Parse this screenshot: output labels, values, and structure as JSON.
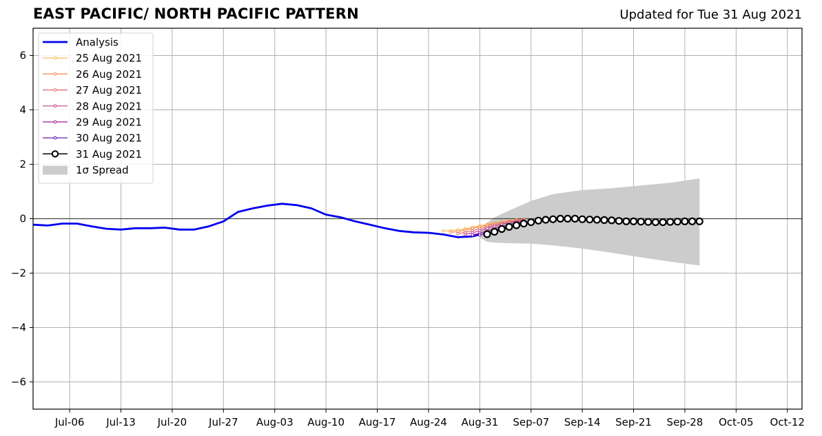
{
  "chart_data": {
    "type": "line",
    "title": "EAST PACIFIC/ NORTH PACIFIC PATTERN",
    "subtitle": "Updated for Tue 31 Aug 2021",
    "ylim": [
      -7,
      7
    ],
    "yticks": [
      -6,
      -4,
      -2,
      0,
      2,
      4,
      6
    ],
    "ytick_labels": [
      "−6",
      "−4",
      "−2",
      "0",
      "2",
      "4",
      "6"
    ],
    "xlim": [
      "2021-07-01",
      "2021-10-14"
    ],
    "xticks": [
      "2021-07-06",
      "2021-07-13",
      "2021-07-20",
      "2021-07-27",
      "2021-08-03",
      "2021-08-10",
      "2021-08-17",
      "2021-08-24",
      "2021-08-31",
      "2021-09-07",
      "2021-09-14",
      "2021-09-21",
      "2021-09-28",
      "2021-10-05",
      "2021-10-12"
    ],
    "xtick_labels": [
      "Jul-06",
      "Jul-13",
      "Jul-20",
      "Jul-27",
      "Aug-03",
      "Aug-10",
      "Aug-17",
      "Aug-24",
      "Aug-31",
      "Sep-07",
      "Sep-14",
      "Sep-21",
      "Sep-28",
      "Oct-05",
      "Oct-12"
    ],
    "grid": true,
    "legend_position": "top-left",
    "analysis": {
      "name": "Analysis",
      "color": "#0000ee",
      "x": [
        "2021-07-01",
        "2021-07-03",
        "2021-07-05",
        "2021-07-07",
        "2021-07-09",
        "2021-07-11",
        "2021-07-13",
        "2021-07-15",
        "2021-07-17",
        "2021-07-19",
        "2021-07-21",
        "2021-07-23",
        "2021-07-25",
        "2021-07-27",
        "2021-07-29",
        "2021-07-31",
        "2021-08-02",
        "2021-08-04",
        "2021-08-06",
        "2021-08-08",
        "2021-08-10",
        "2021-08-12",
        "2021-08-14",
        "2021-08-16",
        "2021-08-18",
        "2021-08-20",
        "2021-08-22",
        "2021-08-24",
        "2021-08-26",
        "2021-08-28",
        "2021-08-30",
        "2021-08-31"
      ],
      "values": [
        -0.22,
        -0.25,
        -0.18,
        -0.18,
        -0.28,
        -0.37,
        -0.4,
        -0.35,
        -0.35,
        -0.33,
        -0.4,
        -0.4,
        -0.28,
        -0.1,
        0.25,
        0.38,
        0.48,
        0.55,
        0.5,
        0.38,
        0.15,
        0.05,
        -0.1,
        -0.22,
        -0.35,
        -0.45,
        -0.5,
        -0.52,
        -0.58,
        -0.68,
        -0.65,
        -0.58
      ]
    },
    "forecast_series": [
      {
        "name": "25 Aug 2021",
        "color": "#fbb442",
        "start": "2021-08-26",
        "values": [
          -0.45,
          -0.44,
          -0.41,
          -0.37,
          -0.32,
          -0.26,
          -0.21,
          -0.16,
          -0.11,
          -0.07,
          -0.04,
          -0.02
        ]
      },
      {
        "name": "26 Aug 2021",
        "color": "#f3864f",
        "start": "2021-08-27",
        "values": [
          -0.5,
          -0.47,
          -0.42,
          -0.36,
          -0.3,
          -0.24,
          -0.18,
          -0.12,
          -0.08,
          -0.05,
          -0.03
        ]
      },
      {
        "name": "27 Aug 2021",
        "color": "#e06363",
        "start": "2021-08-28",
        "values": [
          -0.55,
          -0.5,
          -0.44,
          -0.37,
          -0.3,
          -0.23,
          -0.17,
          -0.12,
          -0.08,
          -0.04
        ]
      },
      {
        "name": "28 Aug 2021",
        "color": "#c73d8a",
        "start": "2021-08-29",
        "values": [
          -0.58,
          -0.52,
          -0.44,
          -0.36,
          -0.28,
          -0.21,
          -0.15,
          -0.1,
          -0.06
        ]
      },
      {
        "name": "29 Aug 2021",
        "color": "#9b179e",
        "start": "2021-08-30",
        "values": [
          -0.6,
          -0.53,
          -0.45,
          -0.36,
          -0.28,
          -0.21,
          -0.15,
          -0.1
        ]
      },
      {
        "name": "30 Aug 2021",
        "color": "#5c07a4",
        "start": "2021-08-31",
        "values": [
          -0.6,
          -0.52,
          -0.43,
          -0.34,
          -0.27,
          -0.2,
          -0.14
        ]
      },
      {
        "name": "31 Aug 2021",
        "color": "#000000",
        "start": "2021-09-01",
        "values": [
          -0.57,
          -0.48,
          -0.38,
          -0.3,
          -0.24,
          -0.18,
          -0.13,
          -0.07,
          -0.04,
          -0.02,
          0.0,
          0.0,
          0.0,
          -0.02,
          -0.03,
          -0.04,
          -0.05,
          -0.06,
          -0.08,
          -0.1,
          -0.1,
          -0.11,
          -0.12,
          -0.13,
          -0.13,
          -0.12,
          -0.11,
          -0.1,
          -0.1,
          -0.1
        ]
      }
    ],
    "spread": {
      "name": "1σ Spread",
      "color": "#cccccc",
      "x": [
        "2021-08-31",
        "2021-09-01",
        "2021-09-02",
        "2021-09-04",
        "2021-09-07",
        "2021-09-10",
        "2021-09-14",
        "2021-09-18",
        "2021-09-22",
        "2021-09-26",
        "2021-09-30"
      ],
      "upper": [
        -0.55,
        -0.15,
        0.05,
        0.3,
        0.65,
        0.9,
        1.05,
        1.12,
        1.22,
        1.32,
        1.48
      ],
      "lower": [
        -0.7,
        -0.85,
        -0.88,
        -0.9,
        -0.92,
        -0.98,
        -1.1,
        -1.25,
        -1.42,
        -1.58,
        -1.72
      ]
    }
  }
}
